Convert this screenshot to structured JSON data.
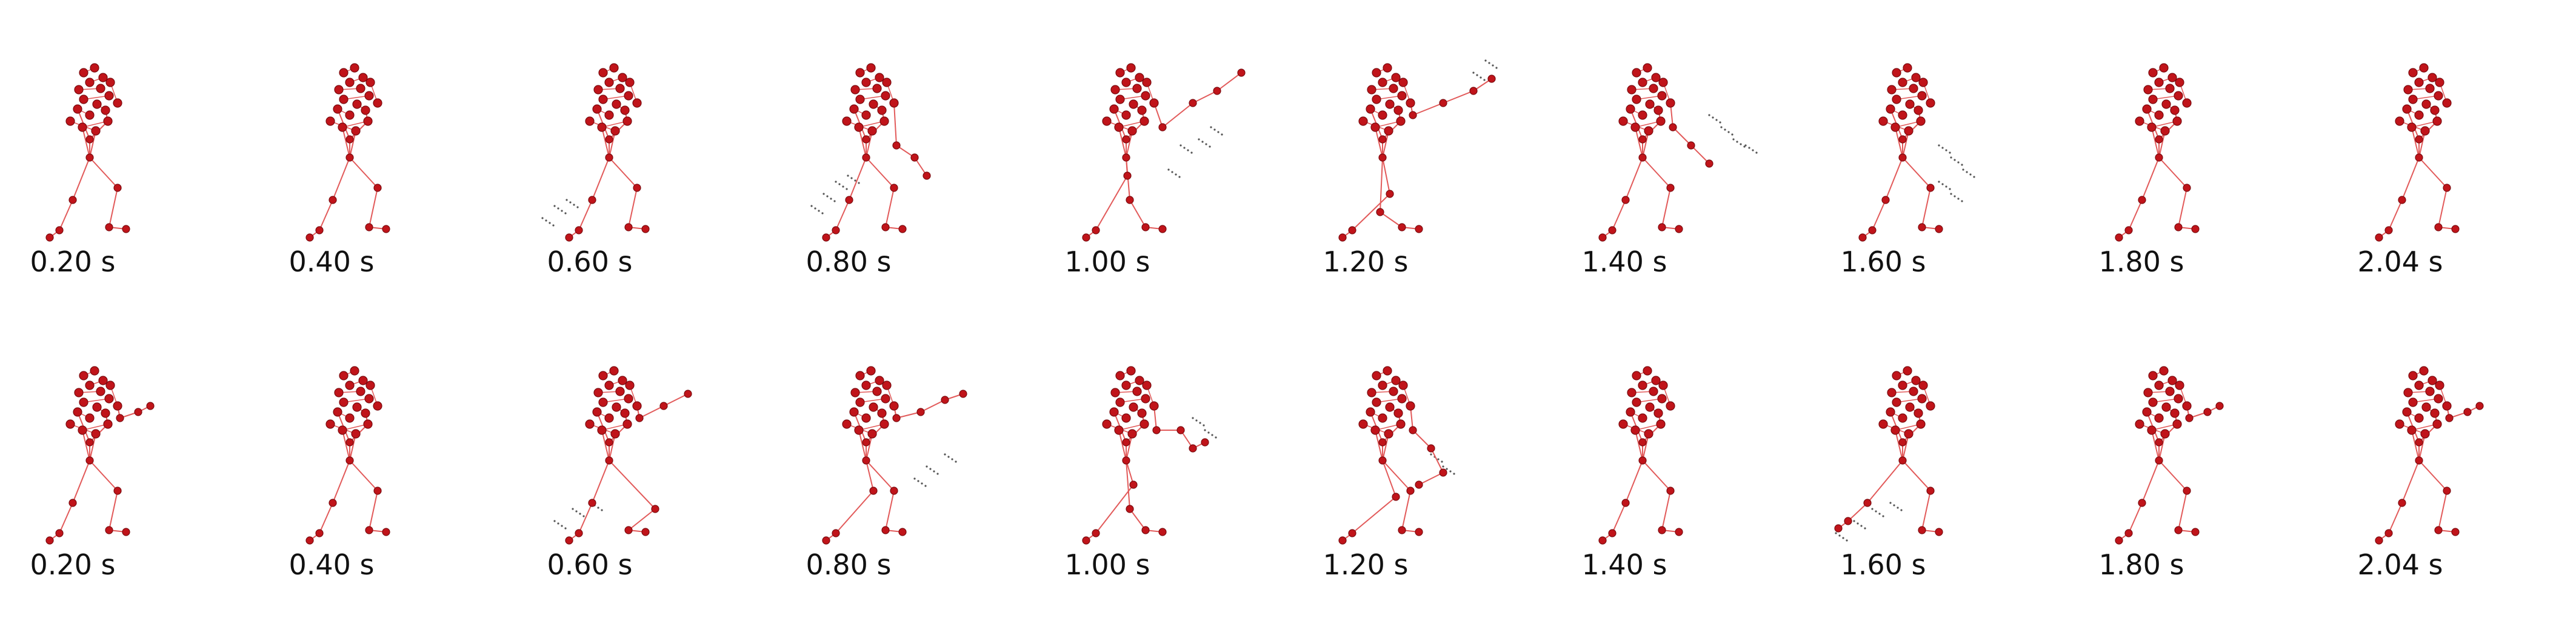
{
  "figure": {
    "rows": [
      {
        "frames": [
          {
            "time_label": "0.20 s"
          },
          {
            "time_label": "0.40 s"
          },
          {
            "time_label": "0.60 s"
          },
          {
            "time_label": "0.80 s"
          },
          {
            "time_label": "1.00 s"
          },
          {
            "time_label": "1.20 s"
          },
          {
            "time_label": "1.40 s"
          },
          {
            "time_label": "1.60 s"
          },
          {
            "time_label": "1.80 s"
          },
          {
            "time_label": "2.04 s"
          }
        ]
      },
      {
        "frames": [
          {
            "time_label": "0.20 s"
          },
          {
            "time_label": "0.40 s"
          },
          {
            "time_label": "0.60 s"
          },
          {
            "time_label": "0.80 s"
          },
          {
            "time_label": "1.00 s"
          },
          {
            "time_label": "1.20 s"
          },
          {
            "time_label": "1.40 s"
          },
          {
            "time_label": "1.60 s"
          },
          {
            "time_label": "1.80 s"
          },
          {
            "time_label": "2.04 s"
          }
        ]
      }
    ],
    "colors": {
      "joint_fill": "#c0141a",
      "joint_stroke": "#7a0a0e",
      "bone": "#e25a5a",
      "trail": "#555555"
    }
  }
}
